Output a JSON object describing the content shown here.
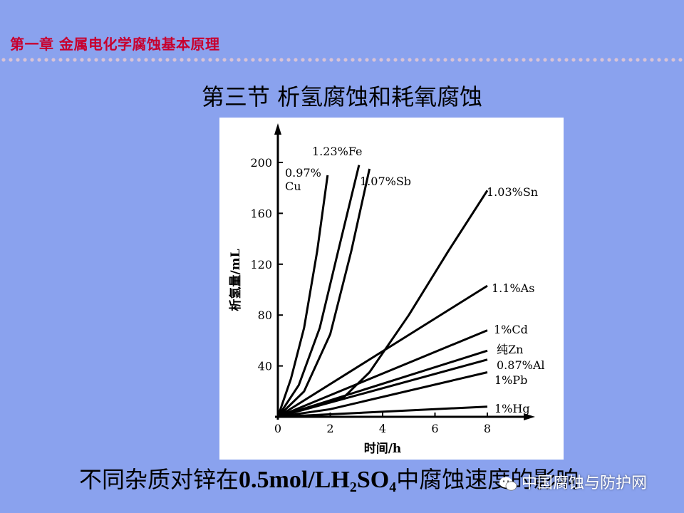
{
  "header": {
    "chapter": "第一章  金属电化学腐蚀基本原理",
    "section": "第三节  析氢腐蚀和耗氧腐蚀"
  },
  "caption": {
    "prefix": "不同杂质对锌在",
    "formula_a": "0.5mol/LH",
    "sub_a": "2",
    "formula_b": "SO",
    "sub_b": "4",
    "suffix": "中腐蚀速度的影响"
  },
  "watermark": {
    "text": "中国腐蚀与防护网"
  },
  "colors": {
    "background": "#8aa2ee",
    "chapter": "#c8002e",
    "ink": "#000000"
  },
  "chart_data": {
    "type": "line",
    "xlabel": "时间/h",
    "ylabel": "析氢量/mL",
    "xlim": [
      0,
      8
    ],
    "ylim": [
      0,
      200
    ],
    "xticks": [
      "0",
      "2",
      "4",
      "6",
      "8"
    ],
    "yticks": [
      "40",
      "80",
      "120",
      "160",
      "200"
    ],
    "grid": false,
    "series": [
      {
        "name": "0.97%\nCu",
        "x": [
          0,
          0.5,
          1.0,
          1.5,
          1.9
        ],
        "y": [
          0,
          30,
          70,
          130,
          190
        ]
      },
      {
        "name": "1.23%Fe",
        "x": [
          0,
          0.8,
          1.6,
          2.3,
          3.1
        ],
        "y": [
          0,
          25,
          70,
          130,
          198
        ]
      },
      {
        "name": "1.07%Sb",
        "x": [
          0,
          1.0,
          2.0,
          2.8,
          3.5
        ],
        "y": [
          0,
          20,
          65,
          130,
          195
        ]
      },
      {
        "name": "1.03%Sn",
        "x": [
          0,
          2.5,
          3.5,
          5.0,
          6.5,
          8.0
        ],
        "y": [
          0,
          15,
          35,
          80,
          130,
          178
        ]
      },
      {
        "name": "1.1%As",
        "x": [
          0,
          8.0
        ],
        "y": [
          0,
          103
        ]
      },
      {
        "name": "1%Cd",
        "x": [
          0,
          8.0
        ],
        "y": [
          0,
          68
        ]
      },
      {
        "name": "纯Zn",
        "x": [
          0,
          8.0
        ],
        "y": [
          0,
          52
        ]
      },
      {
        "name": "0.87%Al",
        "x": [
          0,
          8.0
        ],
        "y": [
          0,
          45
        ]
      },
      {
        "name": "1%Pb",
        "x": [
          0,
          2.0,
          8.0
        ],
        "y": [
          0,
          6,
          35
        ]
      },
      {
        "name": "1%Hg",
        "x": [
          0,
          8.0
        ],
        "y": [
          0,
          8
        ]
      }
    ]
  }
}
